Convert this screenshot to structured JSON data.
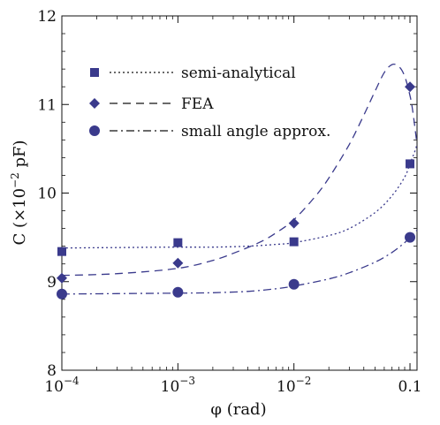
{
  "chart_data": {
    "type": "scatter",
    "title": "",
    "xlabel": "φ (rad)",
    "ylabel_parts": {
      "prefix": "C (×10",
      "exponent": "−2",
      "suffix": " pF)"
    },
    "xscale": "log",
    "xlim": [
      0.0001,
      0.115
    ],
    "ylim": [
      8,
      12
    ],
    "x_ticks": [
      {
        "value": 0.0001,
        "base": "10",
        "exp": "−4"
      },
      {
        "value": 0.001,
        "base": "10",
        "exp": "−3"
      },
      {
        "value": 0.01,
        "base": "10",
        "exp": "−2"
      },
      {
        "value": 0.1,
        "label": "0.1"
      }
    ],
    "y_ticks": [
      {
        "value": 8,
        "label": "8"
      },
      {
        "value": 9,
        "label": "9"
      },
      {
        "value": 10,
        "label": "10"
      },
      {
        "value": 11,
        "label": "11"
      },
      {
        "value": 12,
        "label": "12"
      }
    ],
    "grid": false,
    "legend_position": "top-left",
    "marker_color": "#3a3a8c",
    "series": [
      {
        "name": "semi-analytical",
        "marker": "square",
        "line_style": "dotted",
        "x": [
          0.0001,
          0.001,
          0.01,
          0.1
        ],
        "y": [
          9.34,
          9.44,
          9.45,
          10.33
        ],
        "fit_curve": {
          "x": [
            0.0001,
            0.0003,
            0.001,
            0.002,
            0.004,
            0.007,
            0.01,
            0.02,
            0.03,
            0.05,
            0.07,
            0.09,
            0.1,
            0.11,
            0.115
          ],
          "y": [
            9.38,
            9.385,
            9.39,
            9.39,
            9.4,
            9.42,
            9.44,
            9.52,
            9.6,
            9.78,
            9.97,
            10.18,
            10.33,
            10.47,
            10.55
          ]
        }
      },
      {
        "name": "FEA",
        "marker": "diamond",
        "line_style": "dashed",
        "x": [
          0.0001,
          0.001,
          0.01,
          0.1
        ],
        "y": [
          9.04,
          9.21,
          9.66,
          11.2
        ],
        "fit_curve": {
          "x": [
            0.0001,
            0.0003,
            0.001,
            0.002,
            0.003,
            0.005,
            0.007,
            0.01,
            0.015,
            0.02,
            0.03,
            0.04,
            0.05,
            0.06,
            0.07,
            0.08,
            0.09,
            0.1,
            0.105,
            0.11,
            0.115
          ],
          "y": [
            9.07,
            9.09,
            9.15,
            9.24,
            9.32,
            9.44,
            9.55,
            9.7,
            9.95,
            10.17,
            10.55,
            10.88,
            11.15,
            11.36,
            11.45,
            11.43,
            11.32,
            11.1,
            10.95,
            10.75,
            10.55
          ]
        }
      },
      {
        "name": "small angle approx.",
        "marker": "circle",
        "line_style": "dash-dot",
        "x": [
          0.0001,
          0.001,
          0.01,
          0.1
        ],
        "y": [
          8.86,
          8.88,
          8.97,
          9.5
        ],
        "fit_curve": {
          "x": [
            0.0001,
            0.0003,
            0.001,
            0.002,
            0.004,
            0.007,
            0.01,
            0.02,
            0.03,
            0.05,
            0.07,
            0.09,
            0.1,
            0.11,
            0.115
          ],
          "y": [
            8.86,
            8.865,
            8.87,
            8.875,
            8.89,
            8.92,
            8.95,
            9.03,
            9.1,
            9.22,
            9.33,
            9.44,
            9.5,
            9.56,
            9.58
          ]
        }
      }
    ]
  }
}
